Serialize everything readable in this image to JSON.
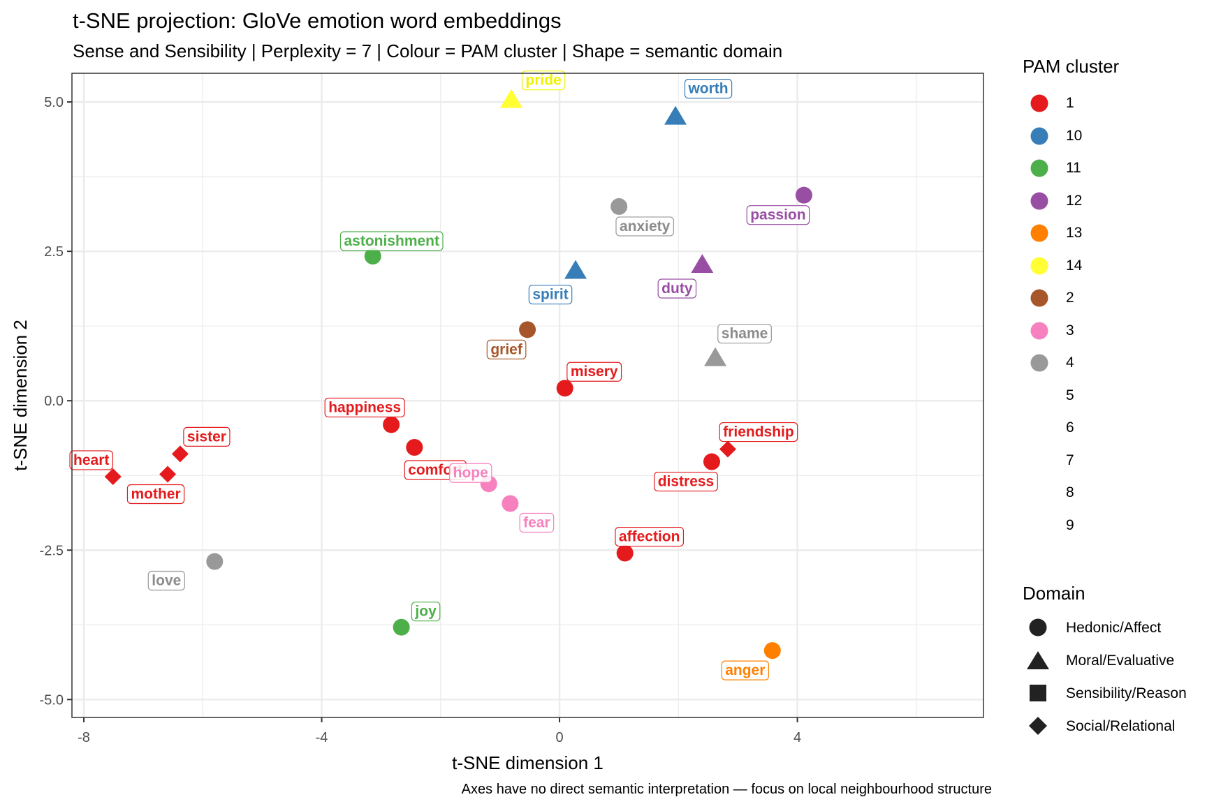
{
  "title": "t-SNE projection: GloVe emotion word embeddings",
  "subtitle": "Sense and Sensibility | Perplexity = 7 | Colour = PAM cluster | Shape = semantic domain",
  "caption": "Axes have no direct semantic interpretation — focus on local neighbourhood structure",
  "chart_data": {
    "type": "scatter",
    "title": "t-SNE projection: GloVe emotion word embeddings",
    "subtitle": "Sense and Sensibility | Perplexity = 7 | Colour = PAM cluster | Shape = semantic domain",
    "xlabel": "t-SNE dimension 1",
    "ylabel": "t-SNE dimension 2",
    "xlim": [
      -8.2,
      7.13
    ],
    "ylim": [
      -5.3,
      5.48
    ],
    "xticks": [
      -8,
      -4,
      0,
      4
    ],
    "xtick_labels": [
      "-8",
      "-4",
      "0",
      "4"
    ],
    "yticks": [
      5.0,
      2.5,
      0.0,
      -2.5,
      -5.0
    ],
    "ytick_labels": [
      "5.0",
      "2.5",
      "0.0",
      "-2.5",
      "-5.0"
    ],
    "grid": true,
    "legend_position": "right",
    "cluster_legend": {
      "title": "PAM cluster",
      "entries": [
        {
          "label": "1",
          "color": "#E41A1C"
        },
        {
          "label": "10",
          "color": "#377EB8"
        },
        {
          "label": "11",
          "color": "#4DAF4A"
        },
        {
          "label": "12",
          "color": "#984EA3"
        },
        {
          "label": "13",
          "color": "#FF7F00"
        },
        {
          "label": "14",
          "color": "#FFFF33"
        },
        {
          "label": "2",
          "color": "#A65628"
        },
        {
          "label": "3",
          "color": "#F781BF"
        },
        {
          "label": "4",
          "color": "#999999"
        },
        {
          "label": "5",
          "color": "#FFFFFF"
        },
        {
          "label": "6",
          "color": "#FFFFFF"
        },
        {
          "label": "7",
          "color": "#FFFFFF"
        },
        {
          "label": "8",
          "color": "#FFFFFF"
        },
        {
          "label": "9",
          "color": "#FFFFFF"
        }
      ]
    },
    "domain_legend": {
      "title": "Domain",
      "entries": [
        {
          "label": "Hedonic/Affect",
          "shape": "circle"
        },
        {
          "label": "Moral/Evaluative",
          "shape": "triangle"
        },
        {
          "label": "Sensibility/Reason",
          "shape": "square"
        },
        {
          "label": "Social/Relational",
          "shape": "diamond"
        }
      ]
    },
    "points": [
      {
        "word": "pride",
        "x": -0.81,
        "y": 5.04,
        "cluster": "14",
        "domain": "Moral/Evaluative"
      },
      {
        "word": "worth",
        "x": 1.95,
        "y": 4.76,
        "cluster": "10",
        "domain": "Moral/Evaluative"
      },
      {
        "word": "anxiety",
        "x": 1.0,
        "y": 3.25,
        "cluster": "4",
        "domain": "Hedonic/Affect"
      },
      {
        "word": "passion",
        "x": 4.11,
        "y": 3.44,
        "cluster": "12",
        "domain": "Hedonic/Affect"
      },
      {
        "word": "astonishment",
        "x": -3.14,
        "y": 2.42,
        "cluster": "11",
        "domain": "Hedonic/Affect"
      },
      {
        "word": "spirit",
        "x": 0.27,
        "y": 2.18,
        "cluster": "10",
        "domain": "Moral/Evaluative"
      },
      {
        "word": "duty",
        "x": 2.4,
        "y": 2.28,
        "cluster": "12",
        "domain": "Moral/Evaluative"
      },
      {
        "word": "grief",
        "x": -0.54,
        "y": 1.19,
        "cluster": "2",
        "domain": "Hedonic/Affect"
      },
      {
        "word": "shame",
        "x": 2.62,
        "y": 0.72,
        "cluster": "4",
        "domain": "Moral/Evaluative"
      },
      {
        "word": "misery",
        "x": 0.09,
        "y": 0.21,
        "cluster": "1",
        "domain": "Hedonic/Affect"
      },
      {
        "word": "happiness",
        "x": -2.83,
        "y": -0.4,
        "cluster": "1",
        "domain": "Hedonic/Affect"
      },
      {
        "word": "comfort",
        "x": -2.44,
        "y": -0.78,
        "cluster": "1",
        "domain": "Hedonic/Affect"
      },
      {
        "word": "sister",
        "x": -6.38,
        "y": -0.89,
        "cluster": "1",
        "domain": "Social/Relational"
      },
      {
        "word": "mother",
        "x": -6.59,
        "y": -1.23,
        "cluster": "1",
        "domain": "Social/Relational"
      },
      {
        "word": "heart",
        "x": -7.51,
        "y": -1.27,
        "cluster": "1",
        "domain": "Social/Relational"
      },
      {
        "word": "friendship",
        "x": 2.83,
        "y": -0.81,
        "cluster": "1",
        "domain": "Social/Relational"
      },
      {
        "word": "distress",
        "x": 2.56,
        "y": -1.02,
        "cluster": "1",
        "domain": "Hedonic/Affect"
      },
      {
        "word": "hope",
        "x": -1.19,
        "y": -1.39,
        "cluster": "3",
        "domain": "Hedonic/Affect"
      },
      {
        "word": "fear",
        "x": -0.83,
        "y": -1.72,
        "cluster": "3",
        "domain": "Hedonic/Affect"
      },
      {
        "word": "affection",
        "x": 1.1,
        "y": -2.55,
        "cluster": "1",
        "domain": "Hedonic/Affect"
      },
      {
        "word": "love",
        "x": -5.8,
        "y": -2.69,
        "cluster": "4",
        "domain": "Hedonic/Affect"
      },
      {
        "word": "joy",
        "x": -2.66,
        "y": -3.79,
        "cluster": "11",
        "domain": "Hedonic/Affect"
      },
      {
        "word": "anger",
        "x": 3.58,
        "y": -4.18,
        "cluster": "13",
        "domain": "Hedonic/Affect"
      }
    ]
  }
}
